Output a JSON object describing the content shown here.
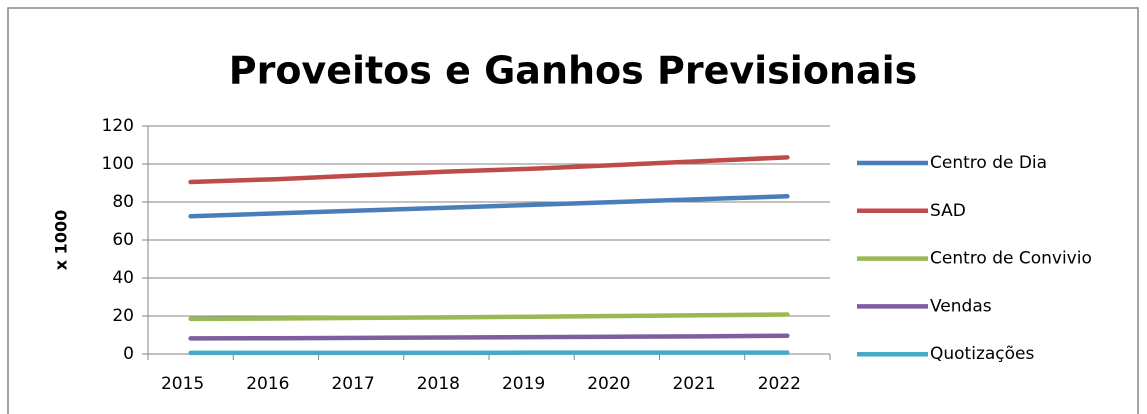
{
  "chart_data": {
    "type": "line",
    "title": "Proveitos e Ganhos Previsionais",
    "y_label": "x 1000",
    "categories": [
      "2015",
      "2016",
      "2017",
      "2018",
      "2019",
      "2020",
      "2021",
      "2022"
    ],
    "series": [
      {
        "name": "Centro de Dia",
        "color": "#4a7ebb",
        "values": [
          72.5,
          74,
          75.5,
          77,
          78.5,
          80,
          81.5,
          83
        ]
      },
      {
        "name": "SAD",
        "color": "#be4b48",
        "values": [
          90.5,
          92,
          94,
          96,
          97.5,
          99.5,
          101.5,
          103.5
        ]
      },
      {
        "name": "Centro de Convivio",
        "color": "#98b954",
        "values": [
          18.5,
          18.7,
          19,
          19.3,
          19.6,
          20,
          20.4,
          20.8
        ]
      },
      {
        "name": "Vendas",
        "color": "#7d5fa0",
        "values": [
          8.2,
          8.3,
          8.5,
          8.7,
          8.9,
          9.1,
          9.3,
          9.6
        ]
      },
      {
        "name": "Quotizações",
        "color": "#46aac5",
        "values": [
          0.6,
          0.6,
          0.6,
          0.6,
          0.7,
          0.7,
          0.7,
          0.7
        ]
      }
    ],
    "ylim": [
      0,
      120
    ],
    "yticks": [
      0,
      20,
      40,
      60,
      80,
      100,
      120
    ],
    "grid": true,
    "legend": "right"
  }
}
